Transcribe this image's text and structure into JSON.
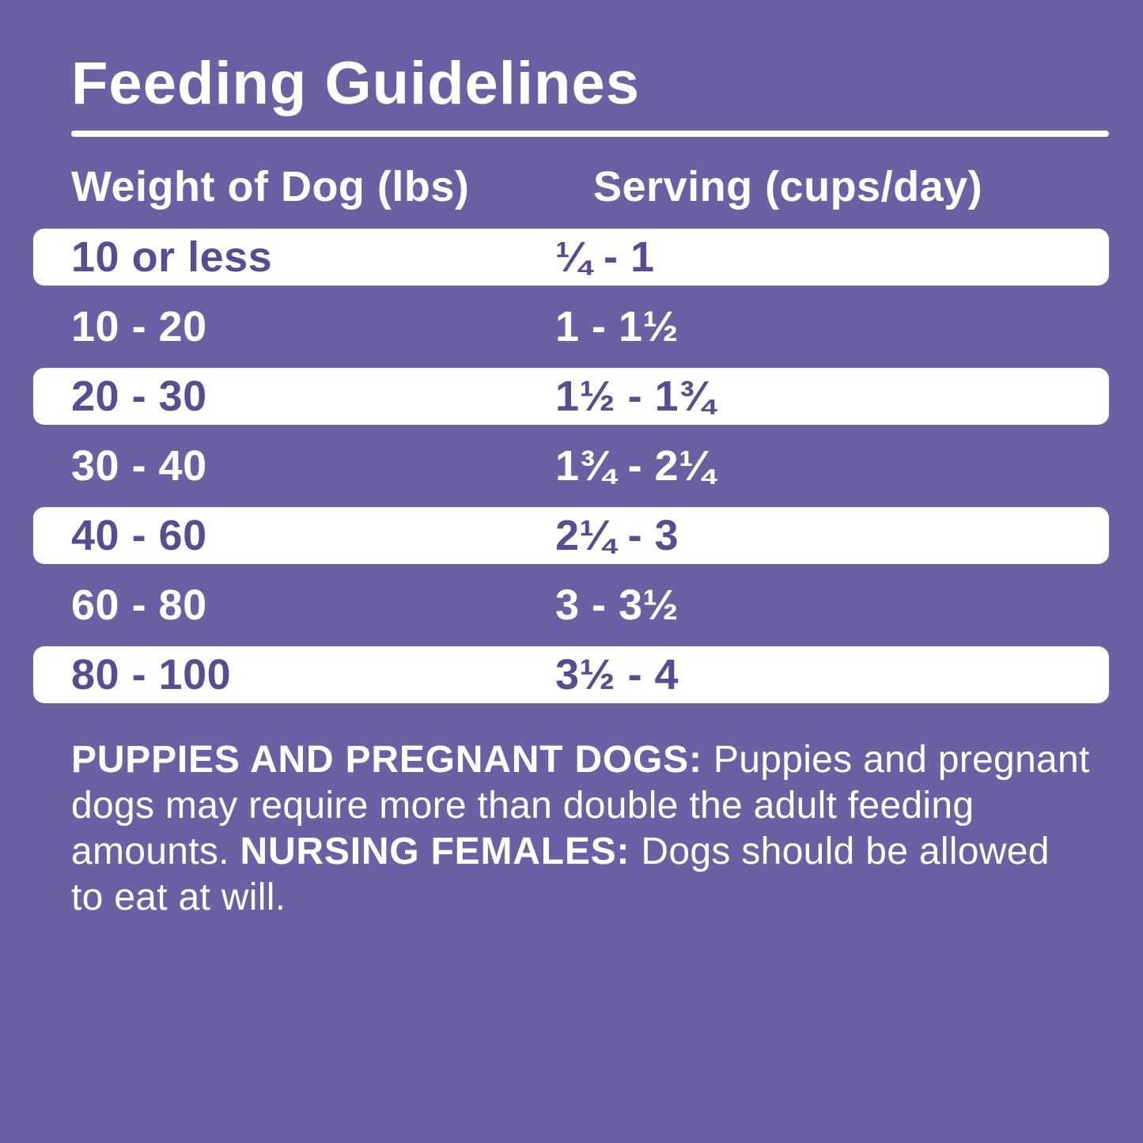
{
  "page": {
    "background_color": "#6c60a4",
    "row_text_color": "#584c94",
    "text_color": "#ffffff"
  },
  "title": "Feeding Guidelines",
  "table": {
    "columns": [
      "Weight of Dog (lbs)",
      "Serving (cups/day)"
    ],
    "rows": [
      {
        "weight": "10 or less",
        "serving": "¼ - 1",
        "highlight": true
      },
      {
        "weight": "10 - 20",
        "serving": "1 - 1½",
        "highlight": false
      },
      {
        "weight": "20 - 30",
        "serving": "1½ - 1¾",
        "highlight": true
      },
      {
        "weight": "30 - 40",
        "serving": "1¾ - 2¼",
        "highlight": false
      },
      {
        "weight": "40 - 60",
        "serving": "2¼ - 3",
        "highlight": true
      },
      {
        "weight": "60 - 80",
        "serving": "3 - 3½",
        "highlight": false
      },
      {
        "weight": "80 - 100",
        "serving": "3½ - 4",
        "highlight": true
      }
    ]
  },
  "footer": {
    "lines": [
      [
        {
          "text": "PUPPIES AND PREGNANT DOGS: ",
          "bold": true
        },
        {
          "text": "Puppies and pregnant",
          "bold": false
        }
      ],
      [
        {
          "text": "dogs may require more than double the adult feeding",
          "bold": false
        }
      ],
      [
        {
          "text": "amounts. ",
          "bold": false
        },
        {
          "text": "NURSING FEMALES: ",
          "bold": true
        },
        {
          "text": "Dogs should be allowed",
          "bold": false
        }
      ],
      [
        {
          "text": "to eat at will.",
          "bold": false
        }
      ]
    ]
  }
}
